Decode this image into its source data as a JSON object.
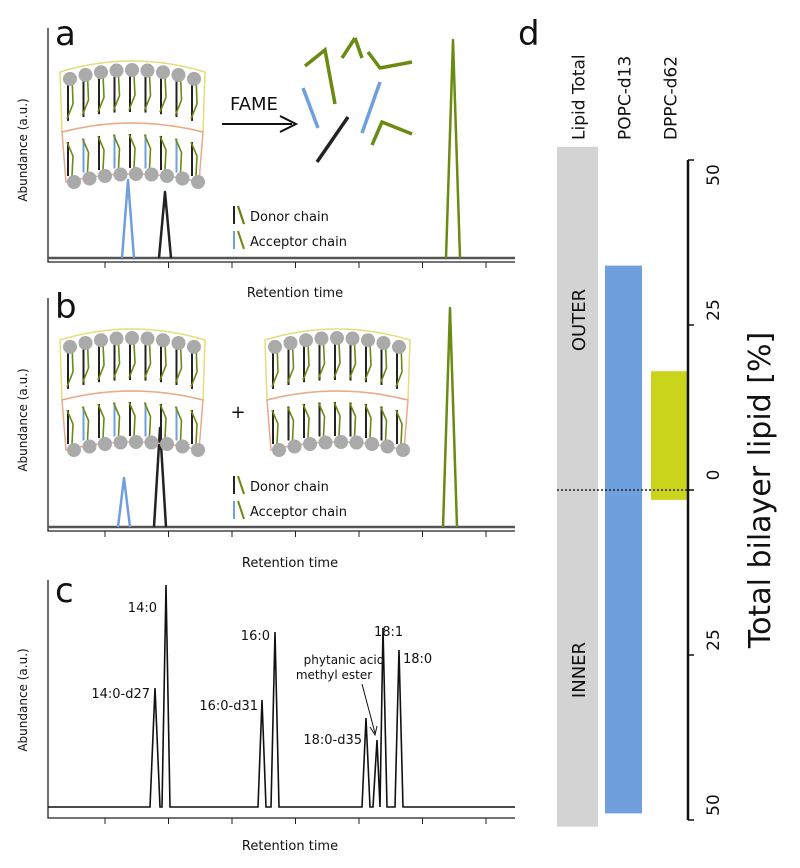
{
  "panels": {
    "a": {
      "label": "a",
      "y_label": "Abundance (a.u.)",
      "x_label": "Retention time",
      "reaction": "FAME",
      "legend": [
        "Donor chain",
        "Acceptor chain"
      ]
    },
    "b": {
      "label": "b",
      "y_label": "Abundance (a.u.)",
      "x_label": "Retention time",
      "operator": "+",
      "legend": [
        "Donor chain",
        "Acceptor chain"
      ]
    },
    "c": {
      "label": "c",
      "y_label": "Abundance (a.u.)",
      "x_label": "Retention time",
      "peaks": [
        "14:0-d27",
        "14:0",
        "16:0-d31",
        "16:0",
        "18:0-d35",
        "18:1",
        "18:0"
      ],
      "annotation": [
        "phytanic acid",
        "methyl ester"
      ]
    },
    "d": {
      "label": "d",
      "axis_label": "Total bilayer lipid [%]",
      "regions": [
        "OUTER",
        "INNER"
      ],
      "ylim": [
        -50,
        50
      ],
      "yticks": [
        {
          "value": 50,
          "label": "50"
        },
        {
          "value": 25,
          "label": "25"
        },
        0,
        {
          "value": -25,
          "label": "25"
        },
        {
          "value": -50,
          "label": "50"
        }
      ],
      "bars": [
        {
          "name": "Lipid Total",
          "color": "#d3d3d3",
          "outer": 52,
          "inner": -51
        },
        {
          "name": "POPC-d13",
          "color": "#6f9fdc",
          "outer": 34,
          "inner": -49
        },
        {
          "name": "DPPC-d62",
          "color": "#c9d41a",
          "outer": 18,
          "inner": -1.5
        }
      ]
    }
  }
}
